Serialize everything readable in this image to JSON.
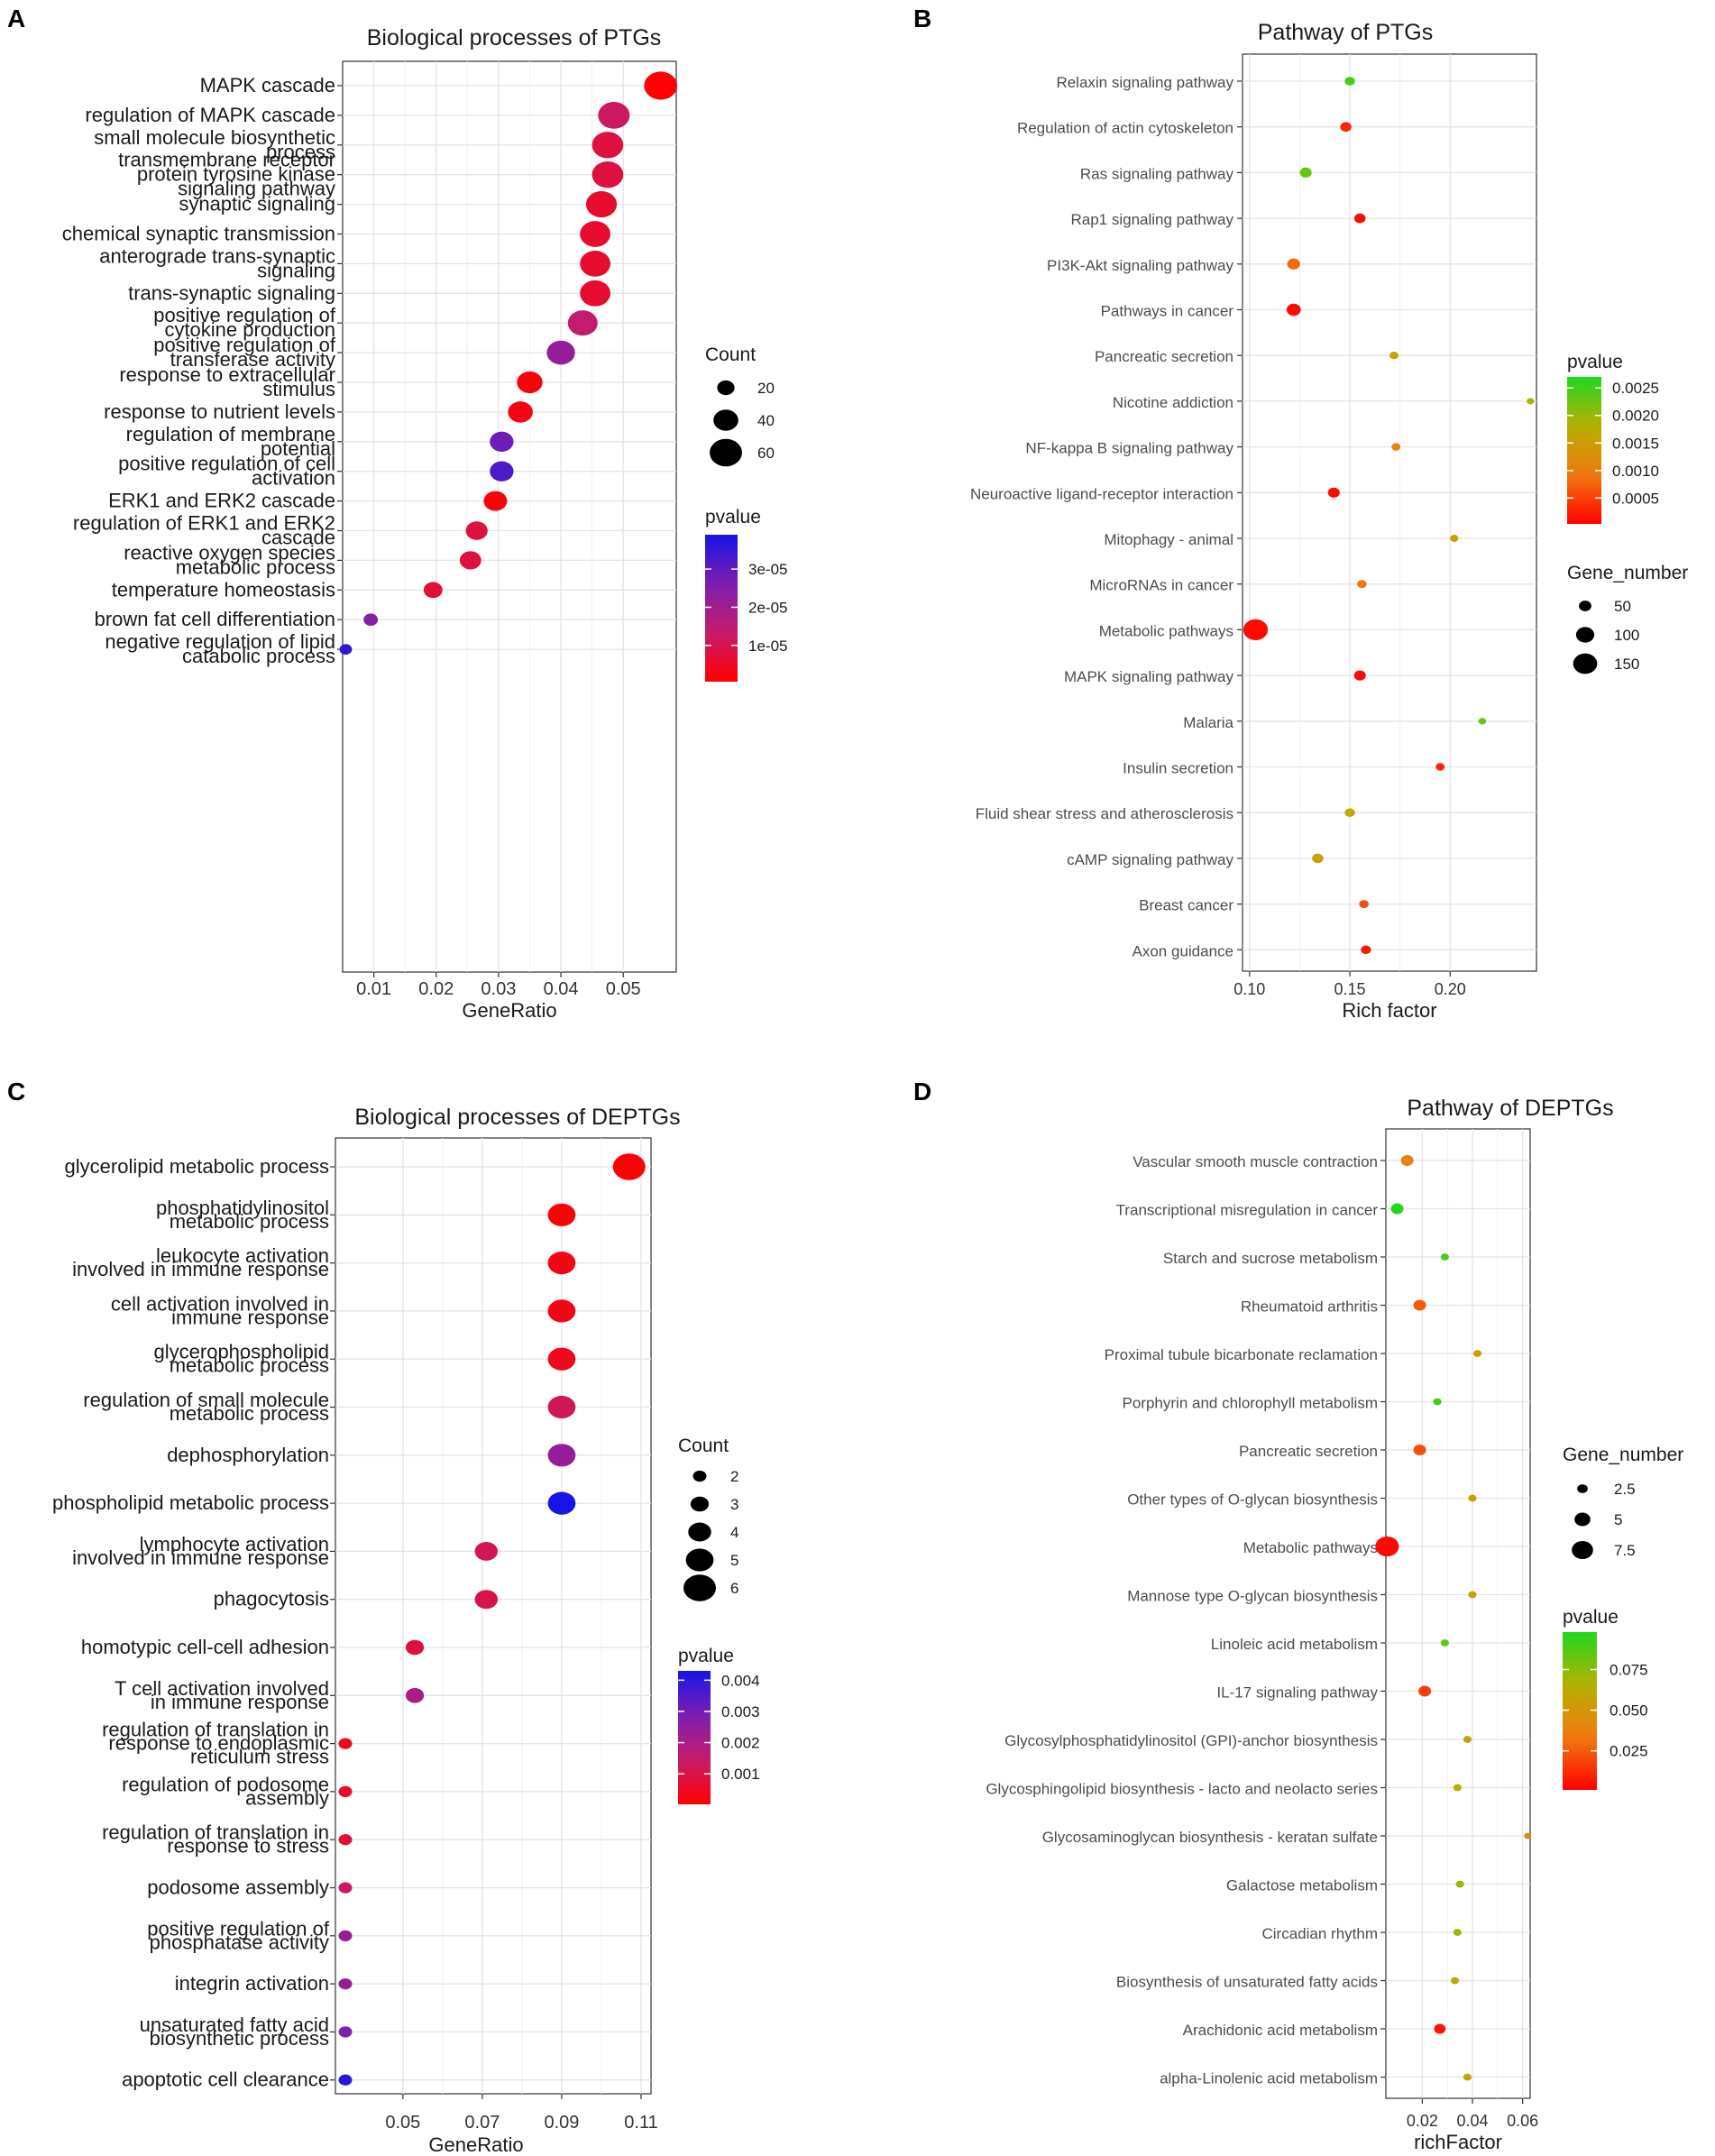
{
  "chart_data": [
    {
      "id": "A",
      "panel_label": "A",
      "type": "scatter",
      "title": "Biological processes of PTGs",
      "xlabel": "GeneRatio",
      "ylabel": "",
      "xlim": [
        0.005,
        0.0585
      ],
      "xticks": [
        0.01,
        0.02,
        0.03,
        0.04,
        0.05
      ],
      "xtick_labels": [
        "0.01",
        "0.02",
        "0.03",
        "0.04",
        "0.05"
      ],
      "categories": [
        "MAPK cascade",
        "regulation of MAPK cascade",
        "small molecule biosynthetic\nprocess",
        "transmembrane receptor\nprotein tyrosine kinase\nsignaling pathway",
        "synaptic signaling",
        "chemical synaptic transmission",
        "anterograde trans-synaptic\nsignaling",
        "trans-synaptic signaling",
        "positive regulation of\ncytokine production",
        "positive regulation of\ntransferase activity",
        "response to extracellular\nstimulus",
        "response to nutrient levels",
        "regulation of membrane\npotential",
        "positive regulation of cell\nactivation",
        "ERK1 and ERK2 cascade",
        "regulation of ERK1 and ERK2\ncascade",
        "reactive oxygen species\nmetabolic process",
        "temperature homeostasis",
        "brown fat cell differentiation",
        "negative regulation of lipid\ncatabolic process"
      ],
      "x": [
        0.056,
        0.0485,
        0.0475,
        0.0475,
        0.0465,
        0.0455,
        0.0455,
        0.0455,
        0.0435,
        0.04,
        0.035,
        0.0335,
        0.0305,
        0.0305,
        0.0295,
        0.0265,
        0.0255,
        0.0195,
        0.0095,
        0.0055
      ],
      "size": [
        62,
        58,
        57,
        57,
        56,
        55,
        55,
        55,
        53,
        49,
        42,
        40,
        37,
        37,
        36,
        32,
        31,
        24,
        12,
        7
      ],
      "color_value": [
        1e-06,
        1.2e-05,
        8e-06,
        8e-06,
        6e-06,
        6e-06,
        6e-06,
        6e-06,
        1.4e-05,
        2.2e-05,
        2e-06,
        3e-06,
        2.8e-05,
        3.2e-05,
        2e-06,
        8e-06,
        8e-06,
        7e-06,
        2.4e-05,
        3.6e-05
      ],
      "size_legend": {
        "title": "Count",
        "values": [
          20,
          40,
          60
        ]
      },
      "color_legend": {
        "title": "pvalue",
        "ticks": [
          3e-05,
          2e-05,
          1e-05
        ],
        "tick_labels": [
          "3e-05",
          "2e-05",
          "1e-05"
        ],
        "range": [
          5e-07,
          3.9e-05
        ],
        "colors": [
          "#ff0000",
          "#1515e8"
        ]
      }
    },
    {
      "id": "B",
      "panel_label": "B",
      "type": "scatter",
      "title": "Pathway of PTGs",
      "xlabel": "Rich factor",
      "ylabel": "",
      "xlim": [
        0.0965,
        0.243
      ],
      "xticks": [
        0.1,
        0.15,
        0.2
      ],
      "xtick_labels": [
        "0.10",
        "0.15",
        "0.20"
      ],
      "categories": [
        "Relaxin signaling pathway",
        "Regulation of actin cytoskeleton",
        "Ras signaling pathway",
        "Rap1 signaling pathway",
        "PI3K-Akt signaling pathway",
        "Pathways in cancer",
        "Pancreatic secretion",
        "Nicotine addiction",
        "NF-kappa B signaling pathway",
        "Neuroactive ligand-receptor interaction",
        "Mitophagy - animal",
        "MicroRNAs in cancer",
        "Metabolic pathways",
        "MAPK signaling pathway",
        "Malaria",
        "Insulin secretion",
        "Fluid shear stress and atherosclerosis",
        "cAMP signaling pathway",
        "Breast cancer",
        "Axon guidance"
      ],
      "x": [
        0.15,
        0.148,
        0.128,
        0.155,
        0.122,
        0.122,
        0.172,
        0.24,
        0.173,
        0.142,
        0.202,
        0.156,
        0.103,
        0.155,
        0.216,
        0.195,
        0.15,
        0.134,
        0.157,
        0.158
      ],
      "size": [
        30,
        40,
        45,
        40,
        55,
        65,
        20,
        8,
        20,
        45,
        15,
        25,
        155,
        45,
        10,
        20,
        30,
        40,
        25,
        30
      ],
      "color_value": [
        0.0025,
        0.0003,
        0.0023,
        0.0001,
        0.0008,
        0.0001,
        0.0016,
        0.0019,
        0.001,
        0.0001,
        0.0015,
        0.0009,
        0.0001,
        0.0001,
        0.0023,
        0.0003,
        0.0017,
        0.0016,
        0.0006,
        0.0002
      ],
      "size_legend": {
        "title": "Gene_number",
        "values": [
          50,
          100,
          150
        ]
      },
      "color_legend": {
        "title": "pvalue",
        "ticks": [
          0.0025,
          0.002,
          0.0015,
          0.001,
          0.0005
        ],
        "tick_labels": [
          "0.0025",
          "0.0020",
          "0.0015",
          "0.0010",
          "0.0005"
        ],
        "range": [
          3e-05,
          0.0027
        ],
        "colors": [
          "#ff0000",
          "#1fd81f"
        ]
      }
    },
    {
      "id": "C",
      "panel_label": "C",
      "type": "scatter",
      "title": "Biological processes of DEPTGs",
      "xlabel": "GeneRatio",
      "ylabel": "",
      "xlim": [
        0.033,
        0.1125
      ],
      "xticks": [
        0.05,
        0.07,
        0.09,
        0.11
      ],
      "xtick_labels": [
        "0.05",
        "0.07",
        "0.09",
        "0.11"
      ],
      "categories": [
        "glycerolipid metabolic process",
        "phosphatidylinositol\nmetabolic process",
        "leukocyte activation\ninvolved in immune response",
        "cell activation involved in\nimmune response",
        "glycerophospholipid\nmetabolic process",
        "regulation of small molecule\nmetabolic process",
        "dephosphorylation",
        "phospholipid metabolic process",
        "lymphocyte activation\ninvolved in immune response",
        "phagocytosis",
        "homotypic cell-cell adhesion",
        "T cell activation involved\nin immune response",
        "regulation of translation in\nresponse to endoplasmic\nreticulum stress",
        "regulation of podosome\nassembly",
        "regulation of translation in\nresponse to stress",
        "podosome assembly",
        "positive regulation of\nphosphatase activity",
        "integrin activation",
        "unsaturated fatty acid\nbiosynthetic process",
        "apoptotic cell clearance"
      ],
      "x": [
        0.107,
        0.09,
        0.09,
        0.09,
        0.09,
        0.09,
        0.09,
        0.09,
        0.071,
        0.071,
        0.053,
        0.053,
        0.0355,
        0.0355,
        0.0355,
        0.0355,
        0.0355,
        0.0355,
        0.0355,
        0.0355
      ],
      "size": [
        6,
        5,
        5,
        5,
        5,
        5,
        5,
        5,
        4,
        4,
        3,
        3,
        2,
        2,
        2,
        2,
        2,
        2,
        2,
        2
      ],
      "color_value": [
        0.0001,
        0.0001,
        0.0003,
        0.0003,
        0.0004,
        0.0012,
        0.0024,
        0.0044,
        0.0012,
        0.001,
        0.0008,
        0.002,
        0.0004,
        0.0006,
        0.0008,
        0.0014,
        0.0024,
        0.0024,
        0.0028,
        0.004
      ],
      "size_legend": {
        "title": "Count",
        "values": [
          2,
          3,
          4,
          5,
          6
        ]
      },
      "color_legend": {
        "title": "pvalue",
        "ticks": [
          0.004,
          0.003,
          0.002,
          0.001
        ],
        "tick_labels": [
          "0.004",
          "0.003",
          "0.002",
          "0.001"
        ],
        "range": [
          2e-05,
          0.0043
        ],
        "colors": [
          "#ff0000",
          "#1515e8"
        ]
      }
    },
    {
      "id": "D",
      "panel_label": "D",
      "type": "scatter",
      "title": "Pathway of DEPTGs",
      "xlabel": "richFactor",
      "ylabel": "",
      "xlim": [
        0.0055,
        0.063
      ],
      "xticks": [
        0.02,
        0.04,
        0.06
      ],
      "xtick_labels": [
        "0.02",
        "0.04",
        "0.06"
      ],
      "categories": [
        "Vascular smooth muscle contraction",
        "Transcriptional misregulation in cancer",
        "Starch and sucrose metabolism",
        "Rheumatoid arthritis",
        "Proximal tubule bicarbonate reclamation",
        "Porphyrin and chlorophyll metabolism",
        "Pancreatic secretion",
        "Other types of O-glycan biosynthesis",
        "Metabolic pathways",
        "Mannose type O-glycan biosynthesis",
        "Linoleic acid metabolism",
        "IL-17 signaling pathway",
        "Glycosylphosphatidylinositol (GPI)-anchor biosynthesis",
        "Glycosphingolipid biosynthesis - lacto and neolacto series",
        "Glycosaminoglycan biosynthesis - keratan sulfate",
        "Galactose metabolism",
        "Circadian rhythm",
        "Biosynthesis of unsaturated fatty acids",
        "Arachidonic acid metabolism",
        "alpha-Linolenic acid metabolism"
      ],
      "x": [
        0.014,
        0.01,
        0.029,
        0.019,
        0.042,
        0.026,
        0.019,
        0.04,
        0.006,
        0.04,
        0.029,
        0.021,
        0.038,
        0.034,
        0.062,
        0.035,
        0.034,
        0.033,
        0.027,
        0.038
      ],
      "size": [
        3.5,
        3.5,
        1.5,
        3.5,
        1.5,
        1.5,
        3.5,
        1.5,
        8.5,
        1.5,
        1.5,
        3.5,
        1.5,
        1.5,
        1.0,
        1.5,
        1.5,
        1.5,
        3.0,
        1.5
      ],
      "color_value": [
        0.04,
        0.098,
        0.09,
        0.025,
        0.058,
        0.09,
        0.022,
        0.058,
        0.003,
        0.058,
        0.085,
        0.018,
        0.058,
        0.065,
        0.042,
        0.07,
        0.07,
        0.065,
        0.006,
        0.06
      ],
      "size_legend": {
        "title": "Gene_number",
        "values": [
          2.5,
          5.0,
          7.5
        ]
      },
      "color_legend": {
        "title": "pvalue",
        "ticks": [
          0.075,
          0.05,
          0.025
        ],
        "tick_labels": [
          "0.075",
          "0.050",
          "0.025"
        ],
        "range": [
          0.001,
          0.098
        ],
        "colors": [
          "#ff0000",
          "#1fd81f"
        ]
      }
    }
  ]
}
